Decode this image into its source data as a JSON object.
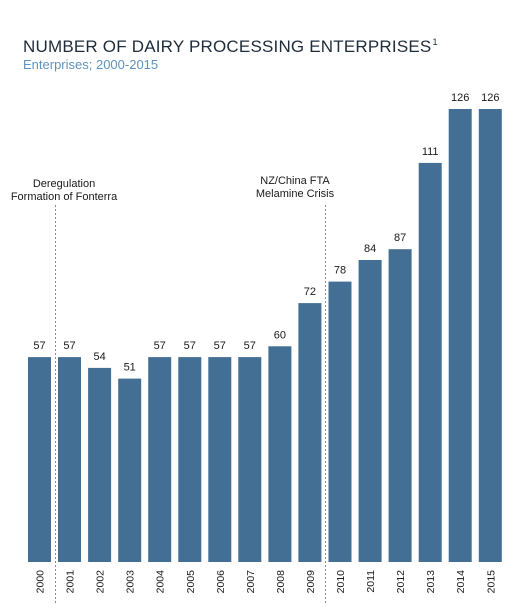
{
  "title": "NUMBER OF DAIRY PROCESSING ENTERPRISES",
  "title_footnote": "1",
  "subtitle": "Enterprises; 2000-2015",
  "colors": {
    "bar": "#426f93",
    "subtitle": "#5f93bf",
    "divider": "#8a8a8a"
  },
  "annotations": [
    {
      "category": "2000",
      "lines": [
        "Deregulation",
        "Formation of Fonterra"
      ]
    },
    {
      "category": "2009",
      "lines": [
        "NZ/China FTA",
        "Melamine Crisis"
      ]
    }
  ],
  "chart_data": {
    "type": "bar",
    "categories": [
      "2000",
      "2001",
      "2002",
      "2003",
      "2004",
      "2005",
      "2006",
      "2007",
      "2008",
      "2009",
      "2010",
      "2011",
      "2012",
      "2013",
      "2014",
      "2015"
    ],
    "values": [
      57,
      57,
      54,
      51,
      57,
      57,
      57,
      57,
      60,
      72,
      78,
      84,
      87,
      111,
      126,
      126
    ],
    "title": "NUMBER OF DAIRY PROCESSING ENTERPRISES",
    "subtitle": "Enterprises; 2000-2015",
    "xlabel": "",
    "ylabel": "",
    "ylim": [
      0,
      126
    ],
    "grid": false,
    "data_labels": true
  }
}
